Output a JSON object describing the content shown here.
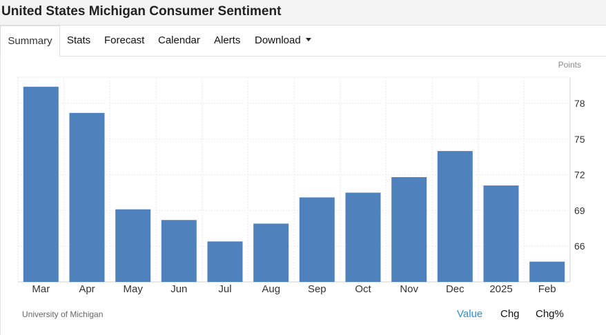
{
  "header": {
    "title": "United States Michigan Consumer Sentiment"
  },
  "tabs": [
    {
      "label": "Summary",
      "active": true
    },
    {
      "label": "Stats"
    },
    {
      "label": "Forecast"
    },
    {
      "label": "Calendar"
    },
    {
      "label": "Alerts"
    },
    {
      "label": "Download",
      "dropdown": true
    }
  ],
  "chart_data": {
    "type": "bar",
    "unit_label": "Points",
    "categories": [
      "Mar",
      "Apr",
      "May",
      "Jun",
      "Jul",
      "Aug",
      "Sep",
      "Oct",
      "Nov",
      "Dec",
      "2025",
      "Feb"
    ],
    "values": [
      79.4,
      77.2,
      69.1,
      68.2,
      66.4,
      67.9,
      70.1,
      70.5,
      71.8,
      74.0,
      71.1,
      64.7
    ],
    "ylim": [
      63,
      80.2
    ],
    "yticks": [
      66,
      69,
      72,
      75,
      78
    ],
    "ytick_labels": [
      "66",
      "69",
      "72",
      "75",
      "78"
    ],
    "grid": true,
    "bar_color": "#4f81bd"
  },
  "footer": {
    "source": "University of Michigan",
    "toggles": [
      {
        "label": "Value",
        "active": true
      },
      {
        "label": "Chg"
      },
      {
        "label": "Chg%"
      }
    ],
    "active_color": "#2f8ed6"
  }
}
